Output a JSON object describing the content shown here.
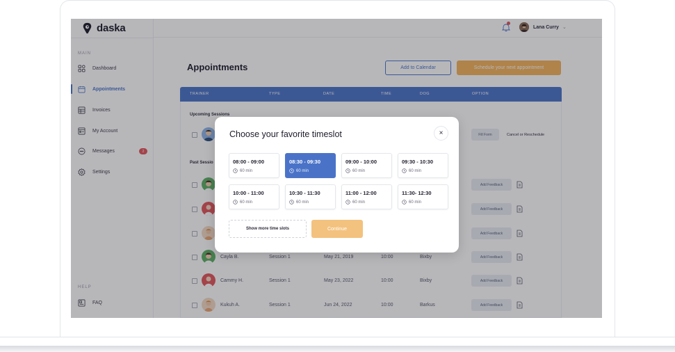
{
  "app": {
    "brand": "daska",
    "user_name": "Lana Curry"
  },
  "sidebar": {
    "main_label": "MAIN",
    "help_label": "HELP",
    "items": [
      {
        "label": "Dashboard",
        "icon": "grid-icon"
      },
      {
        "label": "Appointments",
        "icon": "calendar-icon"
      },
      {
        "label": "Invoices",
        "icon": "invoice-icon"
      },
      {
        "label": "My Account",
        "icon": "account-icon"
      },
      {
        "label": "Messages",
        "icon": "message-icon",
        "badge": "2"
      },
      {
        "label": "Settings",
        "icon": "gear-icon"
      }
    ],
    "help_items": [
      {
        "label": "FAQ",
        "icon": "faq-icon"
      }
    ]
  },
  "main": {
    "title": "Appointments",
    "add_to_calendar": "Add to Calendar",
    "schedule_next": "Schedule your next appointment",
    "columns": [
      "TRAINER",
      "TYPE",
      "DATE",
      "TIME",
      "DOG",
      "OPTION"
    ],
    "upcoming_label": "Upcoming Sessions",
    "past_label": "Past Sessions",
    "past_label_visible": "Past Sessio",
    "fill_form": "Fill Form",
    "cancel_reschedule": "Cancel or Reschedule",
    "add_feedback": "Add Feedback",
    "past_rows": [
      {
        "trainer": "Cayla B.",
        "type": "Session 1",
        "date": "May 21, 2019",
        "time": "10:00",
        "dog": "Bixby"
      },
      {
        "trainer": "Cammy H.",
        "type": "Session 1",
        "date": "May 23, 2022",
        "time": "10:00",
        "dog": "Bixby"
      },
      {
        "trainer": "Kukuh A.",
        "type": "Session 1",
        "date": "Jun 24, 2022",
        "time": "10:00",
        "dog": "Barkus"
      }
    ]
  },
  "modal": {
    "title": "Choose your favorite timeslot",
    "close": "×",
    "slots": [
      {
        "time": "08:00 - 09:00",
        "duration": "60 min",
        "selected": false
      },
      {
        "time": "08:30 - 09:30",
        "duration": "60 min",
        "selected": true
      },
      {
        "time": "09:00 - 10:00",
        "duration": "60 min",
        "selected": false
      },
      {
        "time": "09:30 - 10:30",
        "duration": "60 min",
        "selected": false
      },
      {
        "time": "10:00 - 11:00",
        "duration": "60 min",
        "selected": false
      },
      {
        "time": "10:30 - 11:30",
        "duration": "60 min",
        "selected": false
      },
      {
        "time": "11:00 - 12:00",
        "duration": "60 min",
        "selected": false
      },
      {
        "time": "11:30- 12:30",
        "duration": "60 min",
        "selected": false
      }
    ],
    "show_more": "Show more time slots",
    "continue": "Continue"
  },
  "colors": {
    "accent": "#4a73c8",
    "orange": "#f3b35a",
    "badge_red": "#e2555a"
  }
}
